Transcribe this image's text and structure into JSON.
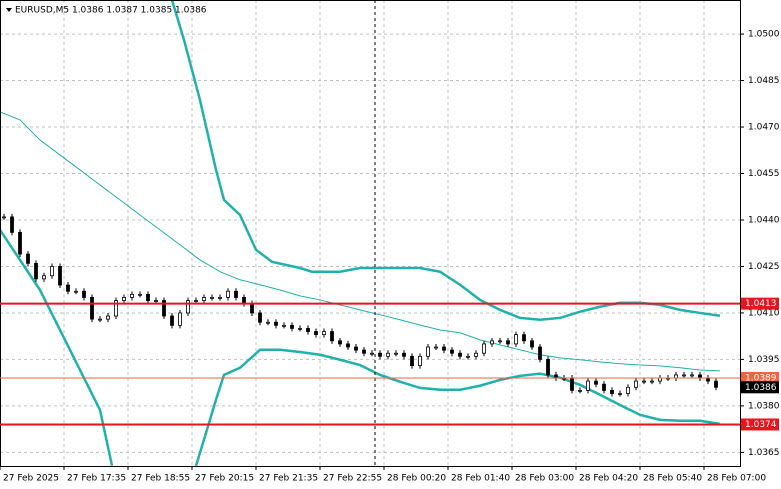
{
  "chart_data": {
    "type": "candlestick",
    "title": "EURUSD,M5 1.0386 1.0387 1.0385 1.0386",
    "xlim": [
      0,
      185
    ],
    "ylim": [
      1.03606,
      1.0511
    ],
    "grid": true,
    "yticks": [
      {
        "value": 1.05,
        "label": "1.0500"
      },
      {
        "value": 1.0485,
        "label": "1.0485"
      },
      {
        "value": 1.047,
        "label": "1.0470"
      },
      {
        "value": 1.0455,
        "label": "1.0455"
      },
      {
        "value": 1.044,
        "label": "1.0440"
      },
      {
        "value": 1.0425,
        "label": "1.0425"
      },
      {
        "value": 1.041,
        "label": "1.0410"
      },
      {
        "value": 1.0395,
        "label": "1.0395"
      },
      {
        "value": 1.038,
        "label": "1.0380"
      },
      {
        "value": 1.0365,
        "label": "1.0365"
      }
    ],
    "xticks": [
      {
        "value": 0,
        "label": "27 Feb 2025"
      },
      {
        "value": 16,
        "label": "27 Feb 17:35"
      },
      {
        "value": 32,
        "label": "27 Feb 18:55"
      },
      {
        "value": 48,
        "label": "27 Feb 20:15"
      },
      {
        "value": 64,
        "label": "27 Feb 21:35"
      },
      {
        "value": 80,
        "label": "27 Feb 22:55"
      },
      {
        "value": 96,
        "label": "28 Feb 00:20"
      },
      {
        "value": 112,
        "label": "28 Feb 01:40"
      },
      {
        "value": 128,
        "label": "28 Feb 03:00"
      },
      {
        "value": 144,
        "label": "28 Feb 04:20"
      },
      {
        "value": 160,
        "label": "28 Feb 05:40"
      },
      {
        "value": 176,
        "label": "28 Feb 07:00"
      }
    ],
    "x": [
      1,
      3,
      5,
      7,
      9,
      11,
      13,
      15,
      17,
      19,
      21,
      23,
      25,
      27,
      29,
      31,
      33,
      35,
      37,
      39,
      41,
      43,
      45,
      47,
      49,
      51,
      53,
      55,
      57,
      59,
      61,
      63,
      65,
      67,
      69,
      71,
      73,
      75,
      77,
      79,
      81,
      83,
      85,
      87,
      89,
      91,
      93,
      95,
      97,
      99,
      101,
      103,
      105,
      107,
      109,
      111,
      113,
      115,
      117,
      119,
      121,
      123,
      125,
      127,
      129,
      131,
      133,
      135,
      137,
      139,
      141,
      143,
      145,
      147,
      149,
      151,
      153,
      155,
      157,
      159,
      161,
      163,
      165,
      167,
      169,
      171,
      173,
      175,
      177,
      179
    ],
    "close": [
      1.0441,
      1.0436,
      1.0429,
      1.0426,
      1.0421,
      1.0422,
      1.0425,
      1.0419,
      1.0417,
      1.0417,
      1.0415,
      1.0408,
      1.0408,
      1.0409,
      1.0414,
      1.0415,
      1.0416,
      1.0416,
      1.0414,
      1.0414,
      1.0409,
      1.0406,
      1.041,
      1.0414,
      1.0414,
      1.0415,
      1.0415,
      1.0415,
      1.0417,
      1.0415,
      1.0413,
      1.041,
      1.0407,
      1.0407,
      1.0406,
      1.0406,
      1.0405,
      1.0405,
      1.0404,
      1.0403,
      1.0404,
      1.0401,
      1.04,
      1.0399,
      1.0398,
      1.0397,
      1.0397,
      1.0396,
      1.0397,
      1.0397,
      1.0396,
      1.0393,
      1.0396,
      1.0399,
      1.0399,
      1.0398,
      1.0397,
      1.0396,
      1.0396,
      1.0397,
      1.04,
      1.0401,
      1.0401,
      1.04,
      1.0403,
      1.0401,
      1.0399,
      1.0395,
      1.039,
      1.0389,
      1.0389,
      1.0385,
      1.0385,
      1.0388,
      1.0387,
      1.0385,
      1.0384,
      1.0384,
      1.0386,
      1.0388,
      1.0388,
      1.0388,
      1.0389,
      1.0389,
      1.039,
      1.039,
      1.039,
      1.0389,
      1.0388,
      1.0386
    ],
    "lines": [
      {
        "color": "#20b2aa",
        "width": 2.5,
        "x": [
          43,
          46,
          50,
          54,
          56,
          60,
          64,
          68,
          75,
          78,
          85,
          90,
          95,
          105,
          110,
          115,
          120,
          125,
          130,
          135,
          140,
          145,
          150,
          155,
          160,
          165,
          170,
          175,
          180
        ],
        "values": [
          1.0511,
          1.04981,
          1.04787,
          1.04562,
          1.04465,
          1.04416,
          1.04304,
          1.04265,
          1.04245,
          1.04233,
          1.04233,
          1.04245,
          1.04245,
          1.04245,
          1.04233,
          1.04191,
          1.04142,
          1.0411,
          1.04084,
          1.04078,
          1.04084,
          1.04104,
          1.0412,
          1.04133,
          1.04133,
          1.04126,
          1.0411,
          1.041,
          1.04091
        ]
      },
      {
        "color": "#20b2aa",
        "width": 2.5,
        "x": [
          0,
          5,
          10,
          15,
          20,
          25,
          28,
          38,
          49,
          51,
          54,
          56,
          60,
          65,
          70,
          75,
          80,
          85,
          90,
          95,
          100,
          105,
          110,
          115,
          120,
          125,
          130,
          135,
          140,
          145,
          150,
          155,
          160,
          165,
          170,
          175,
          180
        ],
        "values": [
          1.04368,
          1.04271,
          1.04174,
          1.04045,
          1.03916,
          1.03787,
          1.03607,
          null,
          1.03607,
          1.03691,
          1.0382,
          1.039,
          1.03923,
          1.03981,
          1.03981,
          1.03974,
          1.03965,
          1.03949,
          1.03932,
          1.039,
          1.03878,
          1.03858,
          1.03852,
          1.03852,
          1.03865,
          1.03884,
          1.03897,
          1.03904,
          1.03891,
          1.03868,
          1.03836,
          1.03803,
          1.03771,
          1.03755,
          1.03752,
          1.03752,
          1.03742
        ]
      },
      {
        "color": "#20b2aa",
        "width": 1,
        "x": [
          0,
          5,
          10,
          15,
          20,
          25,
          30,
          35,
          40,
          45,
          50,
          55,
          60,
          65,
          70,
          75,
          80,
          85,
          90,
          95,
          100,
          105,
          110,
          115,
          120,
          125,
          130,
          135,
          140,
          145,
          150,
          155,
          160,
          165,
          170,
          175,
          180
        ],
        "values": [
          1.04749,
          1.04723,
          1.04658,
          1.0461,
          1.04562,
          1.04513,
          1.04465,
          1.04416,
          1.04368,
          1.0432,
          1.04271,
          1.04233,
          1.04207,
          1.04191,
          1.04174,
          1.04155,
          1.04142,
          1.04126,
          1.0411,
          1.04094,
          1.04078,
          1.04061,
          1.04045,
          1.04036,
          1.04013,
          1.03997,
          1.03981,
          1.03965,
          1.03955,
          1.03949,
          1.03942,
          1.03936,
          1.03932,
          1.03929,
          1.03923,
          1.03916,
          1.03913
        ]
      }
    ],
    "levels": [
      {
        "value": 1.0413,
        "color": "#e8141e",
        "width": 2
      },
      {
        "value": 1.0374,
        "color": "#e8141e",
        "width": 2
      },
      {
        "value": 1.0389,
        "color": "#f0643c",
        "width": 1
      },
      {
        "value": 1.0386,
        "color": "#000000",
        "width": 0
      }
    ]
  }
}
